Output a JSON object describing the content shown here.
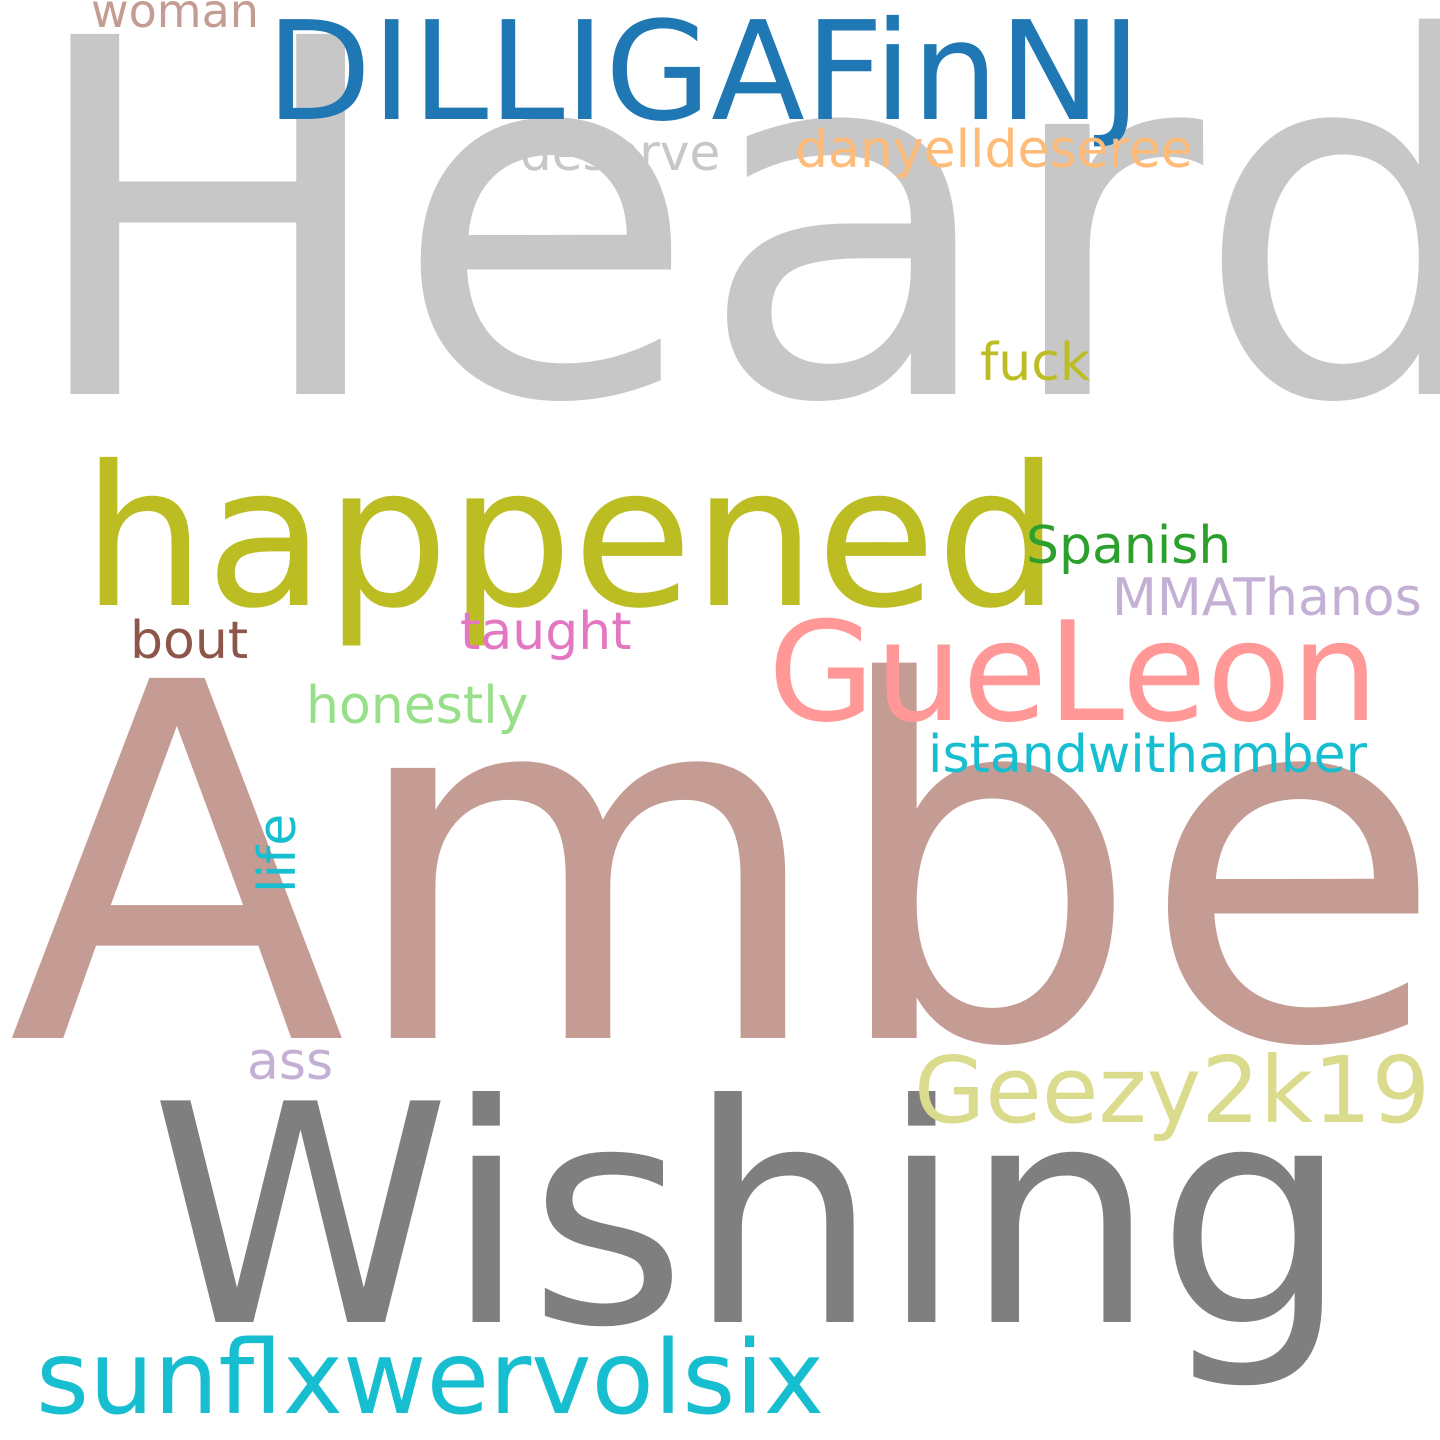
{
  "wordcloud": {
    "background": "#ffffff",
    "words": [
      {
        "text": "Heard",
        "color": "#c7c7c7"
      },
      {
        "text": "Amber",
        "color": "#c49c94"
      },
      {
        "text": "DILLIGAFinNJ",
        "color": "#1f77b4"
      },
      {
        "text": "happened",
        "color": "#bcbd22"
      },
      {
        "text": "Wishing",
        "color": "#7f7f7f"
      },
      {
        "text": "sunflxwervolsix",
        "color": "#17becf"
      },
      {
        "text": "GueLeon",
        "color": "#ff9896"
      },
      {
        "text": "Geezy2k19",
        "color": "#dbdb8d"
      },
      {
        "text": "istandwithamber",
        "color": "#17becf"
      },
      {
        "text": "danyelldeseree",
        "color": "#ffbb78"
      },
      {
        "text": "deserve",
        "color": "#c7c7c7"
      },
      {
        "text": "woman",
        "color": "#c49c94"
      },
      {
        "text": "fuck",
        "color": "#bcbd22"
      },
      {
        "text": "Spanish",
        "color": "#2ca02c"
      },
      {
        "text": "MMAThanos",
        "color": "#c5b0d5"
      },
      {
        "text": "taught",
        "color": "#e377c2"
      },
      {
        "text": "bout",
        "color": "#8c564b"
      },
      {
        "text": "honestly",
        "color": "#98df8a"
      },
      {
        "text": "ass",
        "color": "#c5b0d5"
      },
      {
        "text": "life",
        "color": "#17becf"
      }
    ]
  }
}
